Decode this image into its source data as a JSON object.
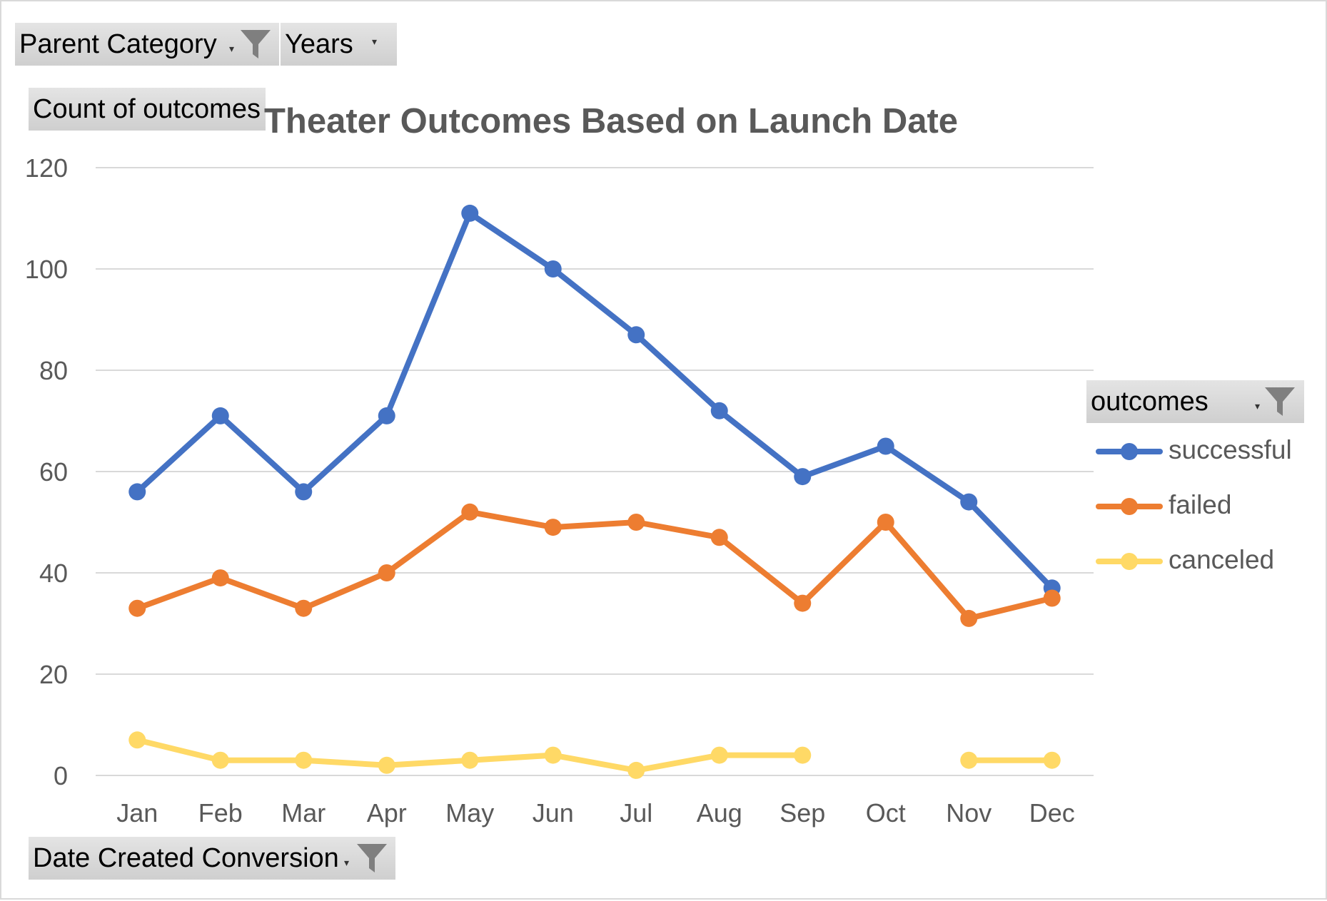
{
  "filters": {
    "parent_category": "Parent Category",
    "years": "Years",
    "value_field": "Count of outcomes",
    "axis_field": "Date Created Conversion",
    "legend_field": "outcomes"
  },
  "chart_data": {
    "type": "line",
    "title": "Theater Outcomes Based on Launch Date",
    "xlabel": "",
    "ylabel": "",
    "categories": [
      "Jan",
      "Feb",
      "Mar",
      "Apr",
      "May",
      "Jun",
      "Jul",
      "Aug",
      "Sep",
      "Oct",
      "Nov",
      "Dec"
    ],
    "ylim": [
      0,
      120
    ],
    "yticks": [
      "0",
      "20",
      "40",
      "60",
      "80",
      "100",
      "120"
    ],
    "grid": true,
    "legend_position": "right",
    "series": [
      {
        "name": "successful",
        "color": "#4472c4",
        "values": [
          56,
          71,
          56,
          71,
          111,
          100,
          87,
          72,
          59,
          65,
          54,
          37
        ]
      },
      {
        "name": "failed",
        "color": "#ed7d31",
        "values": [
          33,
          39,
          33,
          40,
          52,
          49,
          50,
          47,
          34,
          50,
          31,
          35
        ]
      },
      {
        "name": "canceled",
        "color": "#ffd966",
        "values": [
          7,
          3,
          3,
          2,
          3,
          4,
          1,
          4,
          4,
          null,
          3,
          3
        ]
      }
    ]
  }
}
